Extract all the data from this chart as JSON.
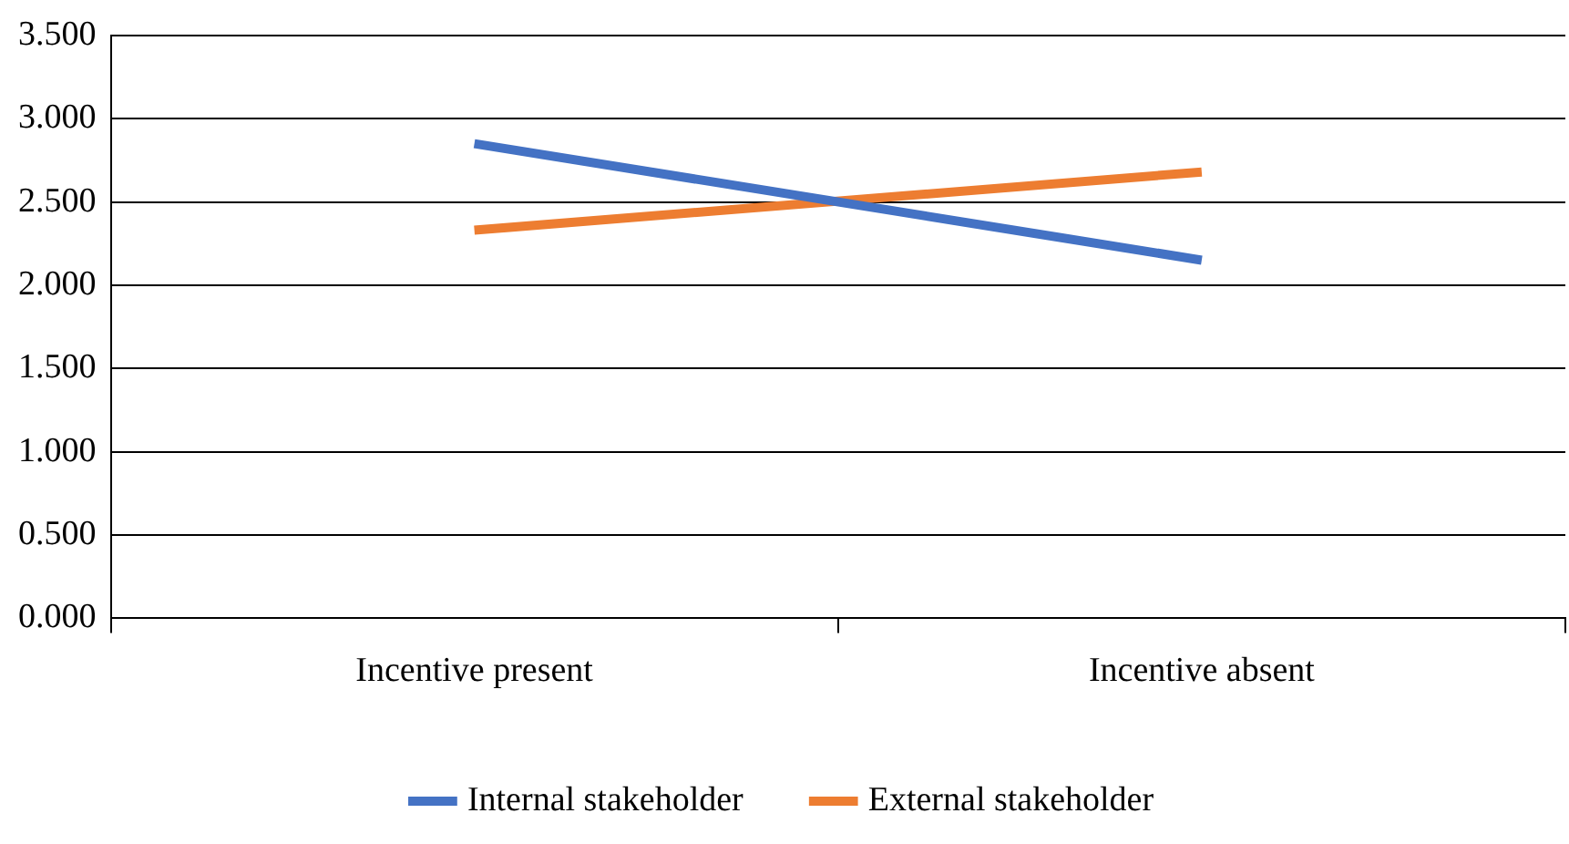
{
  "chart_data": {
    "type": "line",
    "categories": [
      "Incentive present",
      "Incentive absent"
    ],
    "series": [
      {
        "name": "Internal stakeholder",
        "color": "#4472c4",
        "values": [
          2.85,
          2.15
        ]
      },
      {
        "name": "External stakeholder",
        "color": "#ed7d31",
        "values": [
          2.33,
          2.68
        ]
      }
    ],
    "ylim": [
      0,
      3.5
    ],
    "yticks": [
      {
        "value": 0,
        "label": "0.000"
      },
      {
        "value": 0.5,
        "label": "0.500"
      },
      {
        "value": 1,
        "label": "1.000"
      },
      {
        "value": 1.5,
        "label": "1.500"
      },
      {
        "value": 2,
        "label": "2.000"
      },
      {
        "value": 2.5,
        "label": "2.500"
      },
      {
        "value": 3,
        "label": "3.000"
      },
      {
        "value": 3.5,
        "label": "3.500"
      }
    ],
    "grid": "y",
    "legend": "bottom",
    "marker": "none",
    "line_style": "solid"
  }
}
